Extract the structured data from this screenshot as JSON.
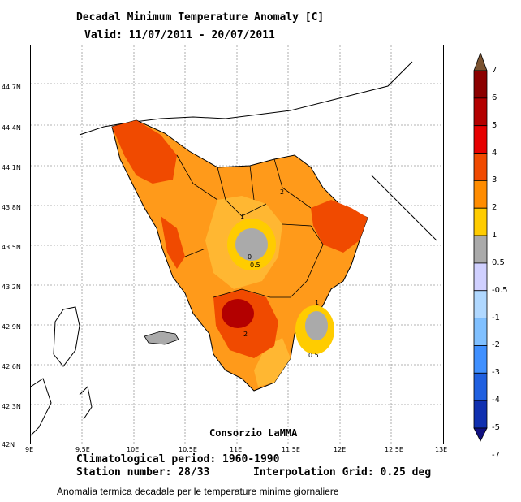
{
  "title": "Decadal Minimum Temperature Anomaly [C]",
  "subtitle": "Valid: 11/07/2011 - 20/07/2011",
  "credit": "Consorzio LaMMA",
  "climatological_period": "Climatological period: 1960-1990",
  "station_number": "Station number: 28/33",
  "interpolation": "Interpolation Grid: 0.25 deg",
  "caption": "Anomalia termica decadale per le temperature minime giornaliere",
  "lat_labels": [
    "44.7N",
    "44.4N",
    "44.1N",
    "43.8N",
    "43.5N",
    "43.2N",
    "42.9N",
    "42.6N",
    "42.3N",
    "42N"
  ],
  "lon_labels": [
    "9E",
    "9.5E",
    "10E",
    "10.5E",
    "11E",
    "11.5E",
    "12E",
    "12.5E",
    "13E"
  ],
  "contour_labels": [
    "2",
    "1",
    "0",
    "0.5",
    "1",
    "2",
    "0.5"
  ],
  "legend": {
    "labels": [
      "7",
      "6",
      "5",
      "4",
      "3",
      "2",
      "1",
      "0.5",
      "-0.5",
      "-1",
      "-2",
      "-3",
      "-4",
      "-5",
      "-7"
    ],
    "colors": [
      "#7a5230",
      "#8b0000",
      "#b30000",
      "#e60000",
      "#f04a00",
      "#ff8c00",
      "#ffcc00",
      "#aaaaaa",
      "#d0d0ff",
      "#b0d8ff",
      "#80c0ff",
      "#4090ff",
      "#2060e0",
      "#1030b0",
      "#101080"
    ]
  }
}
